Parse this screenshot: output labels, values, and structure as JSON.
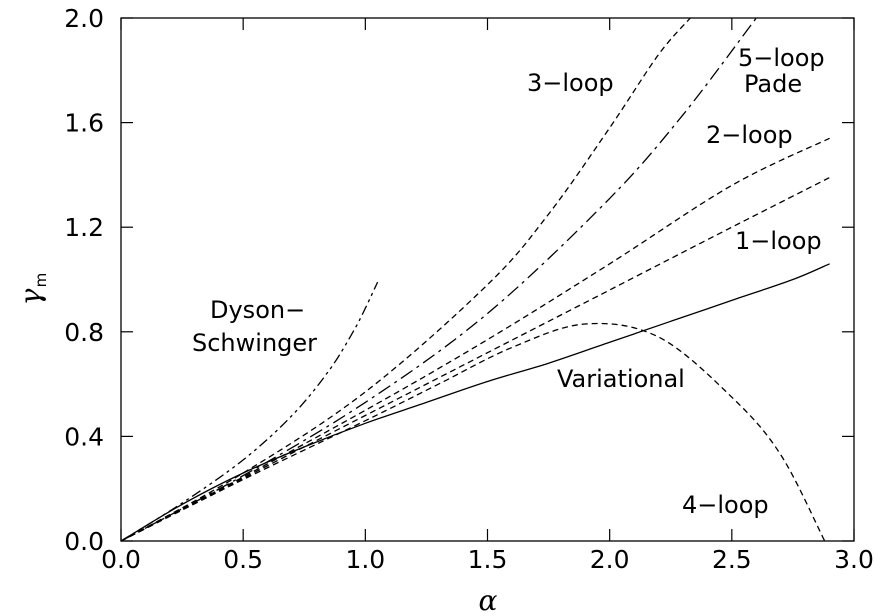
{
  "chart_data": {
    "type": "line",
    "xlabel": "α",
    "ylabel": "γ",
    "ylabel_sub": "m",
    "xlim": [
      0,
      3.0
    ],
    "ylim": [
      0,
      2.0
    ],
    "xticks": [
      "0.0",
      "0.5",
      "1.0",
      "1.5",
      "2.0",
      "2.5",
      "3.0"
    ],
    "yticks": [
      "0.0",
      "0.4",
      "0.8",
      "1.2",
      "1.6",
      "2.0"
    ],
    "grid": false,
    "series": [
      {
        "name": "Variational",
        "style": "solid",
        "x": [
          0,
          0.25,
          0.5,
          0.75,
          1.0,
          1.25,
          1.5,
          1.75,
          2.0,
          2.25,
          2.5,
          2.75,
          2.9
        ],
        "y": [
          0,
          0.14,
          0.26,
          0.36,
          0.45,
          0.53,
          0.61,
          0.68,
          0.76,
          0.84,
          0.92,
          1.0,
          1.06
        ]
      },
      {
        "name": "1-loop",
        "style": "dashed",
        "x": [
          0,
          0.5,
          1.0,
          1.5,
          2.0,
          2.5,
          2.9
        ],
        "y": [
          0,
          0.24,
          0.48,
          0.72,
          0.96,
          1.2,
          1.39
        ]
      },
      {
        "name": "2-loop",
        "style": "dashed",
        "x": [
          0,
          0.5,
          1.0,
          1.5,
          2.0,
          2.5,
          2.9
        ],
        "y": [
          0,
          0.245,
          0.5,
          0.77,
          1.06,
          1.36,
          1.54
        ]
      },
      {
        "name": "3-loop",
        "style": "dashed",
        "x": [
          0,
          0.5,
          1.0,
          1.5,
          1.75,
          2.0,
          2.2,
          2.33
        ],
        "y": [
          0,
          0.26,
          0.57,
          0.98,
          1.25,
          1.58,
          1.86,
          2.0
        ]
      },
      {
        "name": "4-loop",
        "style": "dashed",
        "x": [
          0,
          0.5,
          1.0,
          1.3,
          1.6,
          1.9,
          2.2,
          2.5,
          2.7,
          2.88
        ],
        "y": [
          0,
          0.235,
          0.46,
          0.6,
          0.74,
          0.83,
          0.78,
          0.55,
          0.33,
          0.0
        ]
      },
      {
        "name": "5-loop Pade",
        "style": "dashdot",
        "x": [
          0,
          0.5,
          1.0,
          1.5,
          2.0,
          2.3,
          2.6
        ],
        "y": [
          0,
          0.25,
          0.53,
          0.87,
          1.31,
          1.63,
          2.0
        ]
      },
      {
        "name": "Dyson-Schwinger",
        "style": "dashdotdot",
        "x": [
          0,
          0.25,
          0.5,
          0.7,
          0.85,
          0.95,
          1.0,
          1.05
        ],
        "y": [
          0,
          0.145,
          0.31,
          0.48,
          0.65,
          0.8,
          0.89,
          0.99
        ]
      }
    ],
    "annotations": {
      "three_loop": "3−loop",
      "five_loop_line1": "5−loop",
      "five_loop_line2": "Pade",
      "two_loop": "2−loop",
      "one_loop": "1−loop",
      "dyson_line1": "Dyson−",
      "dyson_line2": "Schwinger",
      "variational": "Variational",
      "four_loop": "4−loop"
    }
  }
}
